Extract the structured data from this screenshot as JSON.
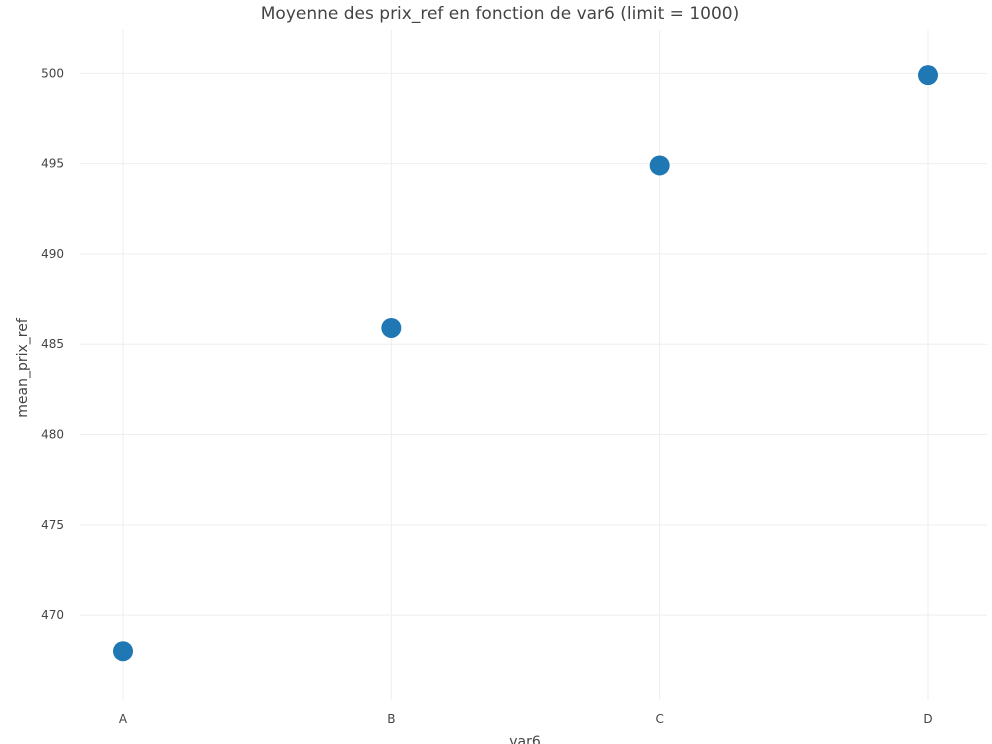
{
  "chart_data": {
    "type": "scatter",
    "title": "Moyenne des prix_ref en fonction de var6 (limit = 1000)",
    "xlabel": "var6",
    "ylabel": "mean_prix_ref",
    "categories": [
      "A",
      "B",
      "C",
      "D"
    ],
    "values": [
      468,
      485.9,
      494.9,
      499.9
    ],
    "ylim": [
      465.3,
      502.4
    ],
    "yticks": [
      470,
      475,
      480,
      485,
      490,
      495,
      500
    ],
    "grid": true,
    "legend": "none",
    "marker_color": "#1f77b4"
  }
}
